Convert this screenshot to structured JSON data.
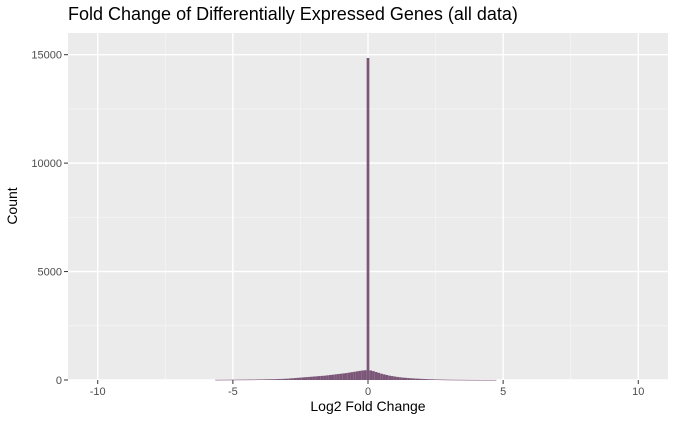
{
  "chart_data": {
    "type": "bar",
    "title": "Fold Change of Differentially Expressed Genes (all data)",
    "xlabel": "Log2 Fold Change",
    "ylabel": "Count",
    "xlim": [
      -11.1,
      11.1
    ],
    "ylim": [
      0,
      16000
    ],
    "x_ticks": [
      -10,
      -5,
      0,
      5,
      10
    ],
    "y_ticks": [
      0,
      5000,
      10000,
      15000
    ],
    "x_tick_labels": [
      "-10",
      "-5",
      "0",
      "5",
      "10"
    ],
    "y_tick_labels": [
      "0",
      "5000",
      "10000",
      "15000"
    ],
    "grid": true,
    "legend": "none",
    "bin_width": 0.1,
    "bar_color": "#7b5678",
    "bins": {
      "x": [
        -5.6,
        -5.5,
        -5.4,
        -5.3,
        -5.2,
        -5.1,
        -5.0,
        -4.9,
        -4.8,
        -4.7,
        -4.6,
        -4.5,
        -4.4,
        -4.3,
        -4.2,
        -4.1,
        -4.0,
        -3.9,
        -3.8,
        -3.7,
        -3.6,
        -3.5,
        -3.4,
        -3.3,
        -3.2,
        -3.1,
        -3.0,
        -2.9,
        -2.8,
        -2.7,
        -2.6,
        -2.5,
        -2.4,
        -2.3,
        -2.2,
        -2.1,
        -2.0,
        -1.9,
        -1.8,
        -1.7,
        -1.6,
        -1.5,
        -1.4,
        -1.3,
        -1.2,
        -1.1,
        -1.0,
        -0.9,
        -0.8,
        -0.7,
        -0.6,
        -0.5,
        -0.4,
        -0.3,
        -0.2,
        -0.1,
        0.0,
        0.1,
        0.2,
        0.3,
        0.4,
        0.5,
        0.6,
        0.7,
        0.8,
        0.9,
        1.0,
        1.1,
        1.2,
        1.3,
        1.4,
        1.5,
        1.6,
        1.7,
        1.8,
        1.9,
        2.0,
        2.1,
        2.2,
        2.3,
        2.4,
        2.5,
        2.6,
        2.7,
        2.8,
        2.9,
        3.0,
        3.1,
        3.2,
        3.3,
        3.4,
        3.5,
        3.6,
        3.7,
        3.8,
        3.9,
        4.0,
        4.1,
        4.2,
        4.3,
        4.4,
        4.5,
        4.6,
        4.7
      ],
      "counts": [
        10,
        10,
        12,
        12,
        14,
        14,
        16,
        16,
        18,
        18,
        20,
        20,
        22,
        22,
        24,
        26,
        28,
        30,
        32,
        34,
        36,
        38,
        40,
        45,
        50,
        55,
        60,
        70,
        80,
        90,
        100,
        110,
        120,
        130,
        140,
        150,
        160,
        170,
        180,
        190,
        200,
        215,
        230,
        245,
        260,
        275,
        290,
        305,
        320,
        340,
        360,
        380,
        400,
        420,
        440,
        450,
        14850,
        440,
        410,
        370,
        330,
        290,
        260,
        230,
        200,
        180,
        160,
        140,
        125,
        110,
        100,
        90,
        80,
        72,
        64,
        58,
        52,
        46,
        40,
        36,
        32,
        28,
        25,
        22,
        20,
        18,
        16,
        14,
        13,
        12,
        11,
        10,
        9,
        8,
        7,
        6,
        6,
        5,
        5,
        5,
        5,
        5,
        5,
        5
      ]
    }
  }
}
